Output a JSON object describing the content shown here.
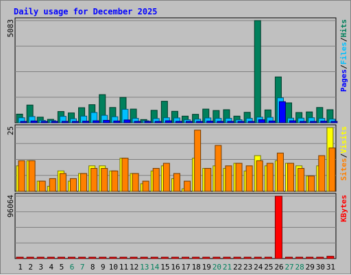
{
  "chart_data": {
    "type": "bar",
    "title": "Daily usage for December 2025",
    "categories": [
      "1",
      "2",
      "3",
      "4",
      "5",
      "6",
      "7",
      "8",
      "9",
      "10",
      "11",
      "12",
      "13",
      "14",
      "15",
      "16",
      "17",
      "18",
      "19",
      "20",
      "21",
      "22",
      "23",
      "24",
      "25",
      "26",
      "27",
      "28",
      "29",
      "30",
      "31"
    ],
    "weekend_days": [
      "6",
      "7",
      "13",
      "14",
      "20",
      "21",
      "27",
      "28"
    ],
    "panels": [
      {
        "id": "hits-files-pages",
        "ymax_label": "5083",
        "ylim": [
          0,
          5083
        ],
        "legend": [
          "Pages",
          "/",
          "Files",
          "/",
          "Hits"
        ],
        "series": [
          {
            "name": "Hits",
            "color": "#00805c",
            "values": [
              430,
              880,
              280,
              170,
              560,
              490,
              750,
              900,
              1400,
              760,
              1260,
              680,
              160,
              620,
              1070,
              570,
              330,
              420,
              680,
              610,
              650,
              330,
              520,
              5083,
              640,
              2280,
              990,
              510,
              540,
              760,
              650
            ]
          },
          {
            "name": "Files",
            "color": "#00c0ff",
            "values": [
              250,
              310,
              120,
              110,
              320,
              200,
              330,
              510,
              370,
              300,
              670,
              220,
              100,
              210,
              250,
              240,
              150,
              180,
              240,
              220,
              220,
              150,
              220,
              280,
              270,
              1240,
              230,
              230,
              250,
              220,
              180
            ]
          },
          {
            "name": "Pages",
            "color": "#0000ff",
            "values": [
              60,
              90,
              40,
              30,
              70,
              60,
              80,
              100,
              120,
              90,
              140,
              70,
              30,
              60,
              100,
              70,
              40,
              50,
              80,
              70,
              70,
              40,
              60,
              150,
              90,
              1050,
              100,
              60,
              60,
              80,
              70
            ]
          }
        ]
      },
      {
        "id": "visits-sites",
        "ymax_label": "25",
        "ylim": [
          0,
          25
        ],
        "legend": [
          "Sites",
          "/",
          "Visits"
        ],
        "series": [
          {
            "name": "Visits",
            "color": "#ffff00",
            "values": [
              10,
              12,
              4,
              2,
              8,
              4,
              7,
              10,
              10,
              8,
              13,
              7,
              3,
              8,
              10,
              5,
              1,
              13,
              9,
              10,
              9,
              11,
              8,
              14,
              10,
              12,
              11,
              10,
              6,
              10,
              25
            ]
          },
          {
            "name": "Sites",
            "color": "#ff8000",
            "values": [
              12,
              12,
              4,
              5,
              7,
              5,
              7,
              9,
              9,
              8,
              13,
              7,
              4,
              9,
              11,
              7,
              4,
              24,
              9,
              18,
              10,
              11,
              10,
              12,
              11,
              15,
              11,
              9,
              6,
              14,
              17
            ]
          }
        ]
      },
      {
        "id": "kbytes",
        "ymax_label": "96064",
        "ylim": [
          0,
          96064
        ],
        "legend": [
          "KBytes"
        ],
        "series": [
          {
            "name": "KBytes",
            "color": "#ff0000",
            "values": [
              1500,
              1500,
              1500,
              1500,
              1500,
              1500,
              1500,
              1500,
              1500,
              1500,
              1500,
              1500,
              1500,
              1500,
              1500,
              1500,
              1500,
              1500,
              1500,
              1500,
              1500,
              1500,
              1500,
              1500,
              1500,
              96064,
              1500,
              1500,
              1500,
              1500,
              3500
            ]
          }
        ]
      }
    ],
    "colors": {
      "title": "#0000ff",
      "axis_text": "#000000",
      "weekend_text": "#00805c",
      "plot_bg": "#c0c0c0",
      "grid": "#808080"
    }
  }
}
